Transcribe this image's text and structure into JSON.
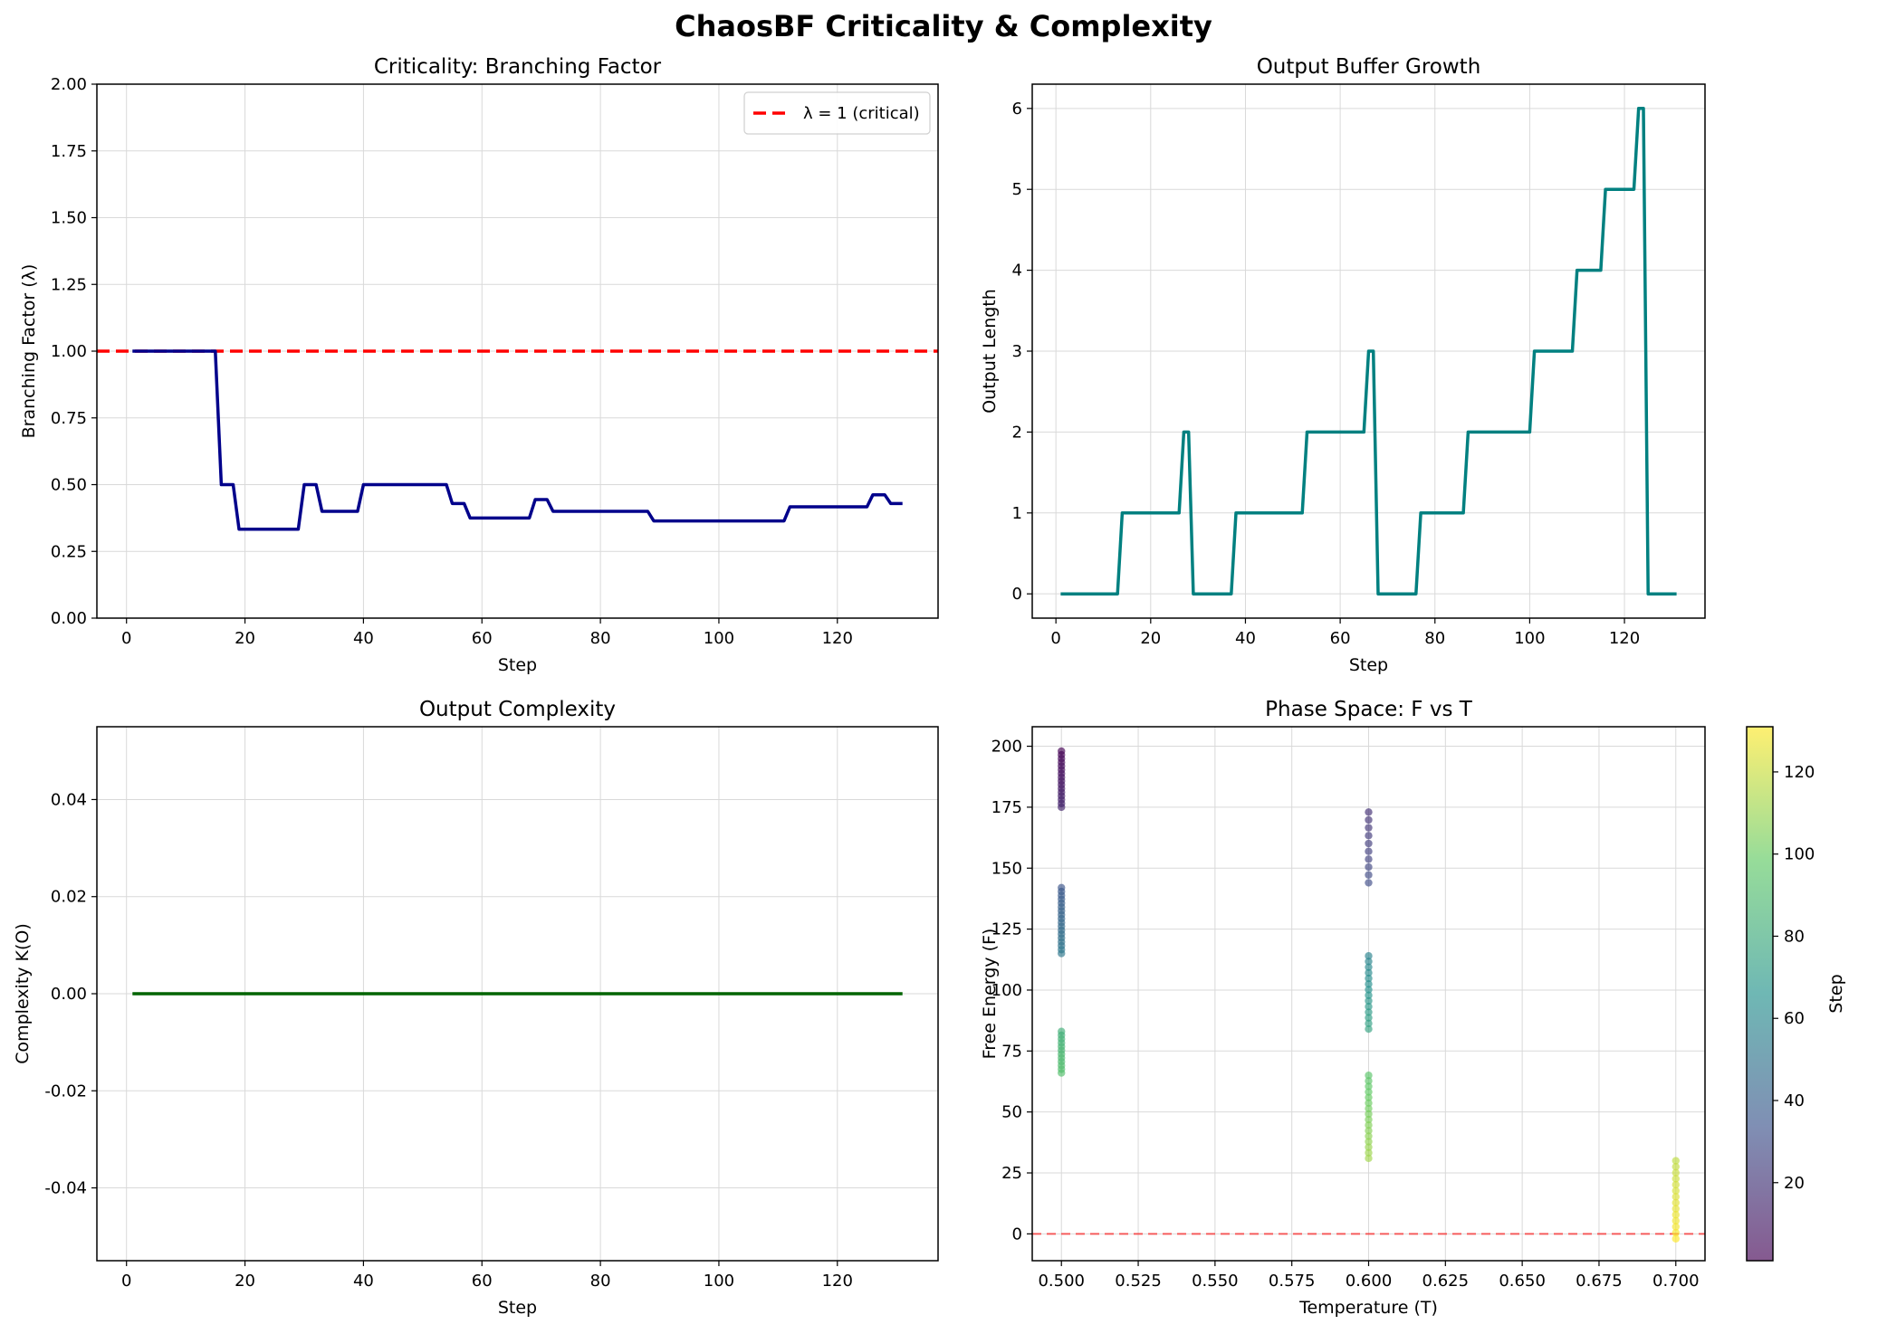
{
  "figure": {
    "suptitle": "ChaosBF Criticality & Complexity"
  },
  "chart_data": [
    {
      "type": "line",
      "title": "Criticality: Branching Factor",
      "xlabel": "Step",
      "ylabel": "Branching Factor (λ)",
      "xlim": [
        -5,
        137
      ],
      "ylim": [
        0,
        2.0
      ],
      "xticks": [
        0,
        20,
        40,
        60,
        80,
        100,
        120
      ],
      "yticks": [
        0.0,
        0.25,
        0.5,
        0.75,
        1.0,
        1.25,
        1.5,
        1.75,
        2.0
      ],
      "ytick_labels": [
        "0.00",
        "0.25",
        "0.50",
        "0.75",
        "1.00",
        "1.25",
        "1.50",
        "1.75",
        "2.00"
      ],
      "grid": true,
      "legend": {
        "position": "top-right",
        "entries": [
          "λ = 1 (critical)"
        ]
      },
      "reference_line": {
        "y": 1.0,
        "label": "λ = 1 (critical)",
        "color": "#ff0000",
        "style": "dashed"
      },
      "series": [
        {
          "color": "#00008b",
          "x": [
            1,
            15,
            16,
            18,
            19,
            29,
            30,
            32,
            33,
            39,
            40,
            54,
            55,
            57,
            58,
            68,
            69,
            71,
            72,
            88,
            89,
            111,
            112,
            125,
            126,
            128,
            129,
            131
          ],
          "y": [
            1.0,
            1.0,
            0.5,
            0.5,
            0.333,
            0.333,
            0.5,
            0.5,
            0.4,
            0.4,
            0.5,
            0.5,
            0.429,
            0.429,
            0.375,
            0.375,
            0.444,
            0.444,
            0.4,
            0.4,
            0.364,
            0.364,
            0.417,
            0.417,
            0.462,
            0.462,
            0.429,
            0.429
          ]
        }
      ]
    },
    {
      "type": "line",
      "title": "Output Buffer Growth",
      "xlabel": "Step",
      "ylabel": "Output Length",
      "xlim": [
        -5,
        137
      ],
      "ylim": [
        -0.3,
        6.3
      ],
      "xticks": [
        0,
        20,
        40,
        60,
        80,
        100,
        120
      ],
      "yticks": [
        0,
        1,
        2,
        3,
        4,
        5,
        6
      ],
      "ytick_labels": [
        "0",
        "1",
        "2",
        "3",
        "4",
        "5",
        "6"
      ],
      "grid": true,
      "series": [
        {
          "color": "#008080",
          "x": [
            1,
            13,
            14,
            26,
            27,
            28,
            29,
            37,
            38,
            52,
            53,
            65,
            66,
            67,
            68,
            76,
            77,
            86,
            87,
            100,
            101,
            109,
            110,
            115,
            116,
            122,
            123,
            124,
            125,
            131
          ],
          "y": [
            0,
            0,
            1,
            1,
            2,
            2,
            0,
            0,
            1,
            1,
            2,
            2,
            3,
            3,
            0,
            0,
            1,
            1,
            2,
            2,
            3,
            3,
            4,
            4,
            5,
            5,
            6,
            6,
            0,
            0
          ]
        }
      ]
    },
    {
      "type": "line",
      "title": "Output Complexity",
      "xlabel": "Step",
      "ylabel": "Complexity K(O)",
      "xlim": [
        -5,
        137
      ],
      "ylim": [
        -0.055,
        0.055
      ],
      "xticks": [
        0,
        20,
        40,
        60,
        80,
        100,
        120
      ],
      "yticks": [
        -0.04,
        -0.02,
        0.0,
        0.02,
        0.04
      ],
      "ytick_labels": [
        "-0.04",
        "-0.02",
        "0.00",
        "0.02",
        "0.04"
      ],
      "grid": true,
      "series": [
        {
          "color": "#006400",
          "x": [
            1,
            131
          ],
          "y": [
            0.0,
            0.0
          ]
        }
      ]
    },
    {
      "type": "scatter",
      "title": "Phase Space: F vs T",
      "xlabel": "Temperature (T)",
      "ylabel": "Free Energy (F)",
      "xlim": [
        0.4905,
        0.7095
      ],
      "ylim": [
        -11,
        208
      ],
      "xticks": [
        0.5,
        0.525,
        0.55,
        0.575,
        0.6,
        0.625,
        0.65,
        0.675,
        0.7
      ],
      "xtick_labels": [
        "0.500",
        "0.525",
        "0.550",
        "0.575",
        "0.600",
        "0.625",
        "0.650",
        "0.675",
        "0.700"
      ],
      "yticks": [
        0,
        25,
        50,
        75,
        100,
        125,
        150,
        175,
        200
      ],
      "ytick_labels": [
        "0",
        "25",
        "50",
        "75",
        "100",
        "125",
        "150",
        "175",
        "200"
      ],
      "grid": true,
      "reference_line": {
        "y": 0,
        "color": "#ff0000",
        "style": "dashed"
      },
      "colorbar": {
        "label": "Step",
        "colormap": "viridis",
        "range": [
          1,
          131
        ],
        "ticks": [
          20,
          40,
          60,
          80,
          100,
          120
        ]
      },
      "clusters": [
        {
          "T": 0.5,
          "F_min": 175,
          "F_max": 198,
          "step_min": 1,
          "step_max": 14,
          "points": 16
        },
        {
          "T": 0.5,
          "F_min": 115,
          "F_max": 142,
          "step_min": 35,
          "step_max": 52,
          "points": 18
        },
        {
          "T": 0.5,
          "F_min": 66,
          "F_max": 83,
          "step_min": 82,
          "step_max": 92,
          "points": 12
        },
        {
          "T": 0.6,
          "F_min": 144,
          "F_max": 173,
          "step_min": 18,
          "step_max": 30,
          "points": 10
        },
        {
          "T": 0.6,
          "F_min": 84,
          "F_max": 114,
          "step_min": 58,
          "step_max": 75,
          "points": 14
        },
        {
          "T": 0.6,
          "F_min": 31,
          "F_max": 65,
          "step_min": 95,
          "step_max": 112,
          "points": 16
        },
        {
          "T": 0.7,
          "F_min": -2,
          "F_max": 30,
          "step_min": 118,
          "step_max": 131,
          "points": 14
        }
      ]
    }
  ]
}
